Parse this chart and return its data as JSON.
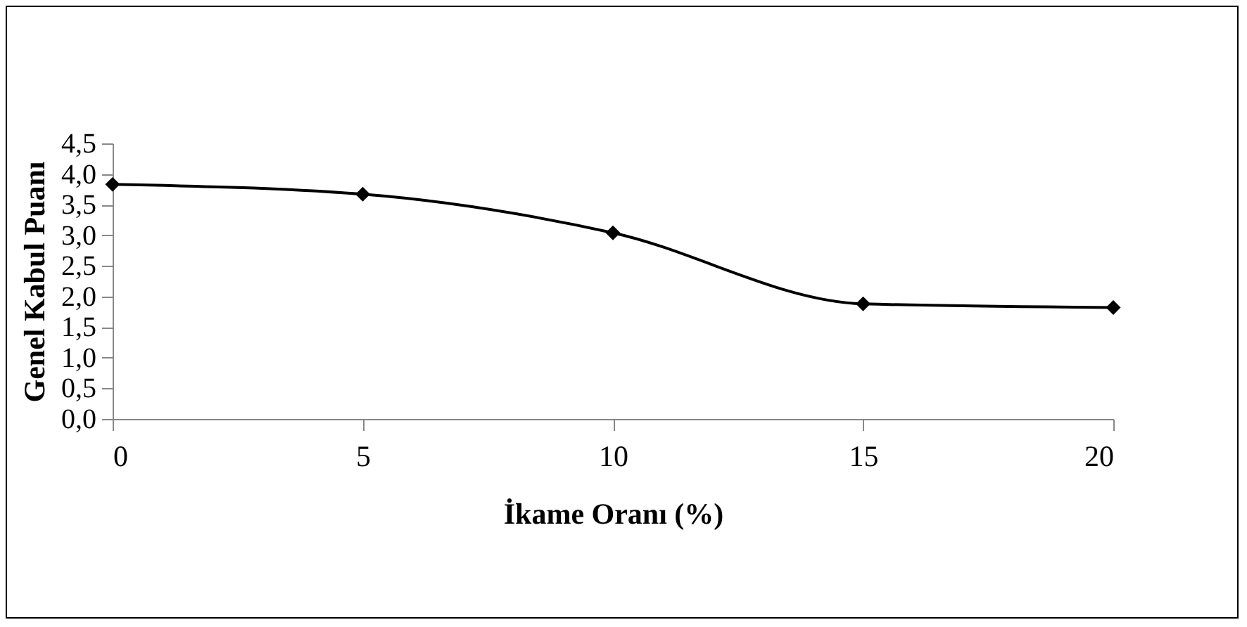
{
  "chart_data": {
    "type": "line",
    "xlabel": "İkame Oranı (%)",
    "ylabel": "Genel Kabul Puanı",
    "x": [
      0,
      5,
      10,
      15,
      20
    ],
    "series": [
      {
        "color": "#000000",
        "values": [
          3.83,
          3.67,
          3.04,
          1.88,
          1.82
        ]
      }
    ],
    "xlim": [
      0,
      20
    ],
    "xticks": [
      0,
      5,
      10,
      15,
      20
    ],
    "ylim": [
      0,
      4.5
    ],
    "yticks": [
      {
        "value": 0,
        "label": "0,0"
      },
      {
        "value": 0.5,
        "label": "0,5"
      },
      {
        "value": 1,
        "label": "1,0"
      },
      {
        "value": 1.5,
        "label": "1,5"
      },
      {
        "value": 2,
        "label": "2,0"
      },
      {
        "value": 2.5,
        "label": "2,5"
      },
      {
        "value": 3,
        "label": "3,0"
      },
      {
        "value": 3.5,
        "label": "3,5"
      },
      {
        "value": 4,
        "label": "4,0"
      },
      {
        "value": 4.5,
        "label": "4,5"
      }
    ],
    "grid": false,
    "legend": false,
    "marker": "diamond",
    "line_style": "solid"
  }
}
